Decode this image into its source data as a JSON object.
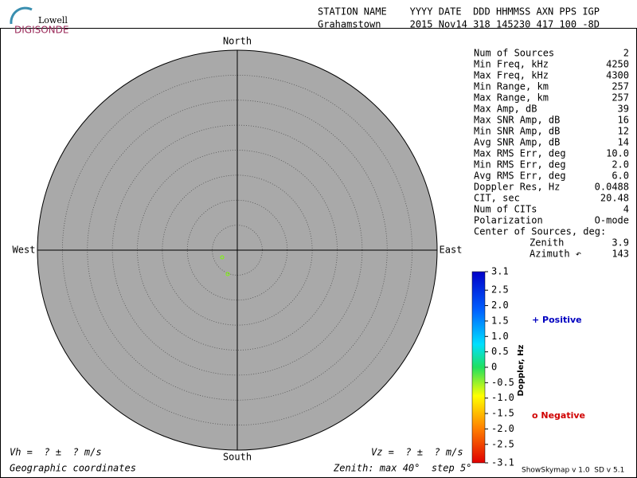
{
  "logo": {
    "top": "Lowell",
    "bottom": "DIGISONDE"
  },
  "header": {
    "labels": "STATION NAME    YYYY DATE  DDD HHMMSS AXN PPS IGP",
    "values": "Grahamstown     2015 Nov14 318 145230 417 100 -8D"
  },
  "stats": [
    [
      "Num of Sources",
      "2"
    ],
    [
      "Min Freq, kHz",
      "4250"
    ],
    [
      "Max Freq, kHz",
      "4300"
    ],
    [
      "Min Range, km",
      "257"
    ],
    [
      "Max Range, km",
      "257"
    ],
    [
      "Max Amp, dB",
      "39"
    ],
    [
      "Max SNR Amp, dB",
      "16"
    ],
    [
      "Min SNR Amp, dB",
      "12"
    ],
    [
      "Avg SNR Amp, dB",
      "14"
    ],
    [
      "Max RMS Err, deg",
      "10.0"
    ],
    [
      "Min RMS Err, deg",
      "2.0"
    ],
    [
      "Avg RMS Err, deg",
      "6.0"
    ],
    [
      "Doppler Res, Hz",
      "0.0488"
    ],
    [
      "CIT, sec",
      "20.48"
    ],
    [
      "Num of CITs",
      "4"
    ],
    [
      "Polarization",
      "O-mode"
    ]
  ],
  "center": {
    "title": "Center of Sources, deg:",
    "rows": [
      [
        "Zenith",
        "3.9"
      ],
      [
        "Azimuth ↶",
        "143"
      ]
    ]
  },
  "directions": {
    "north": "North",
    "south": "South",
    "west": "West",
    "east": "East"
  },
  "colorbar": {
    "title": "Doppler, Hz",
    "lim": [
      -3.1,
      3.1
    ],
    "ticks": [
      3.1,
      2.5,
      {
        "value": 2,
        "label": "2.0"
      },
      1.5,
      {
        "value": 1,
        "label": "1.0"
      },
      0.5,
      0,
      -0.5,
      {
        "value": -1,
        "label": "-1.0"
      },
      -1.5,
      {
        "value": -2,
        "label": "-2.0"
      },
      -2.5,
      -3.1
    ]
  },
  "legend": {
    "positive": "+ Positive",
    "negative": "o Negative"
  },
  "footer": {
    "vh": "Vh =  ? ±  ? m/s",
    "vz": "Vz =  ? ±  ? m/s",
    "coords": "Geographic coordinates",
    "zenith": "Zenith: max 40°  step 5°",
    "version": "ShowSkymap v 1.0  SD v 5.1"
  }
}
